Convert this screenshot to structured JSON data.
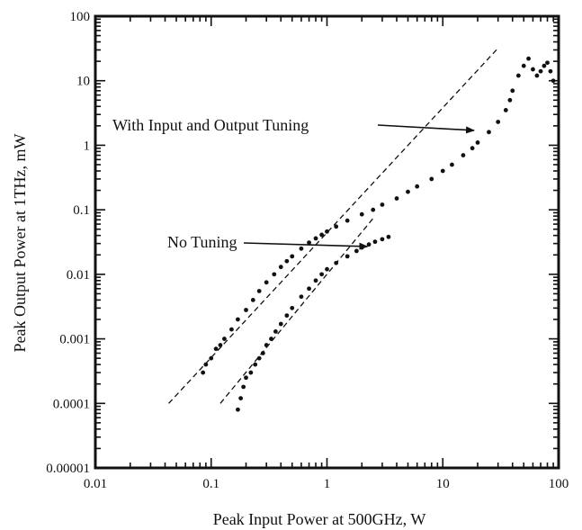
{
  "chart_data": {
    "type": "scatter",
    "title": "",
    "xlabel": "Peak Input Power at 500GHz, W",
    "ylabel": "Peak Output Power at 1THz, mW",
    "xscale": "log",
    "yscale": "log",
    "xlim": [
      0.01,
      100
    ],
    "ylim": [
      1e-05,
      100
    ],
    "grid": false,
    "x_tick_labels": [
      "0.01",
      "0.1",
      "1",
      "10",
      "100"
    ],
    "y_tick_labels": [
      "0.00001",
      "0.0001",
      "0.001",
      "0.01",
      "0.1",
      "1",
      "10",
      "100"
    ],
    "series": [
      {
        "points": [
          [
            0.085,
            0.0003
          ],
          [
            0.09,
            0.0004
          ],
          [
            0.1,
            0.0005
          ],
          [
            0.11,
            0.0007
          ],
          [
            0.12,
            0.0008
          ],
          [
            0.13,
            0.001
          ],
          [
            0.15,
            0.0014
          ],
          [
            0.17,
            0.002
          ],
          [
            0.2,
            0.0028
          ],
          [
            0.23,
            0.004
          ],
          [
            0.26,
            0.0055
          ],
          [
            0.3,
            0.0075
          ],
          [
            0.35,
            0.01
          ],
          [
            0.4,
            0.013
          ],
          [
            0.45,
            0.016
          ],
          [
            0.5,
            0.019
          ],
          [
            0.6,
            0.025
          ],
          [
            0.7,
            0.031
          ],
          [
            0.8,
            0.036
          ],
          [
            0.9,
            0.041
          ],
          [
            1.0,
            0.046
          ],
          [
            1.2,
            0.055
          ],
          [
            1.5,
            0.068
          ],
          [
            2.0,
            0.085
          ],
          [
            2.5,
            0.1
          ],
          [
            3.0,
            0.12
          ],
          [
            4.0,
            0.15
          ],
          [
            5.0,
            0.19
          ],
          [
            6.0,
            0.23
          ],
          [
            8.0,
            0.3
          ],
          [
            10.0,
            0.4
          ],
          [
            12.0,
            0.5
          ],
          [
            15.0,
            0.7
          ],
          [
            18.0,
            0.9
          ],
          [
            20.0,
            1.1
          ],
          [
            25.0,
            1.6
          ],
          [
            30.0,
            2.3
          ],
          [
            35.0,
            3.5
          ],
          [
            38.0,
            5.0
          ],
          [
            40.0,
            7.0
          ],
          [
            45.0,
            12.0
          ],
          [
            50.0,
            17.0
          ],
          [
            55.0,
            22.0
          ],
          [
            60.0,
            15.0
          ],
          [
            65.0,
            12.0
          ],
          [
            70.0,
            14.0
          ],
          [
            75.0,
            17.0
          ],
          [
            80.0,
            19.0
          ],
          [
            85.0,
            14.0
          ],
          [
            90.0,
            10.0
          ]
        ]
      },
      {
        "points": [
          [
            0.17,
            8e-05
          ],
          [
            0.18,
            0.00012
          ],
          [
            0.19,
            0.00018
          ],
          [
            0.2,
            0.00025
          ],
          [
            0.22,
            0.0003
          ],
          [
            0.24,
            0.0004
          ],
          [
            0.26,
            0.0005
          ],
          [
            0.28,
            0.0006
          ],
          [
            0.3,
            0.0008
          ],
          [
            0.33,
            0.001
          ],
          [
            0.36,
            0.0013
          ],
          [
            0.4,
            0.0017
          ],
          [
            0.45,
            0.0023
          ],
          [
            0.5,
            0.003
          ],
          [
            0.6,
            0.0045
          ],
          [
            0.7,
            0.006
          ],
          [
            0.8,
            0.008
          ],
          [
            0.9,
            0.01
          ],
          [
            1.0,
            0.012
          ],
          [
            1.2,
            0.015
          ],
          [
            1.5,
            0.019
          ],
          [
            1.8,
            0.023
          ],
          [
            2.0,
            0.026
          ],
          [
            2.3,
            0.029
          ],
          [
            2.6,
            0.032
          ],
          [
            3.0,
            0.035
          ],
          [
            3.4,
            0.038
          ]
        ]
      }
    ],
    "reference_lines": [
      {
        "style": "dashed",
        "x": [
          0.043,
          30.0
        ],
        "y": [
          0.0001,
          32.0
        ]
      },
      {
        "style": "dashed",
        "x": [
          0.12,
          2.6
        ],
        "y": [
          0.0001,
          0.08
        ]
      }
    ],
    "annotations": [
      {
        "text": "With Input and Output Tuning",
        "arrow_to": [
          20.0,
          1.7
        ]
      },
      {
        "text": "No Tuning",
        "arrow_to": [
          2.4,
          0.027
        ]
      }
    ]
  }
}
